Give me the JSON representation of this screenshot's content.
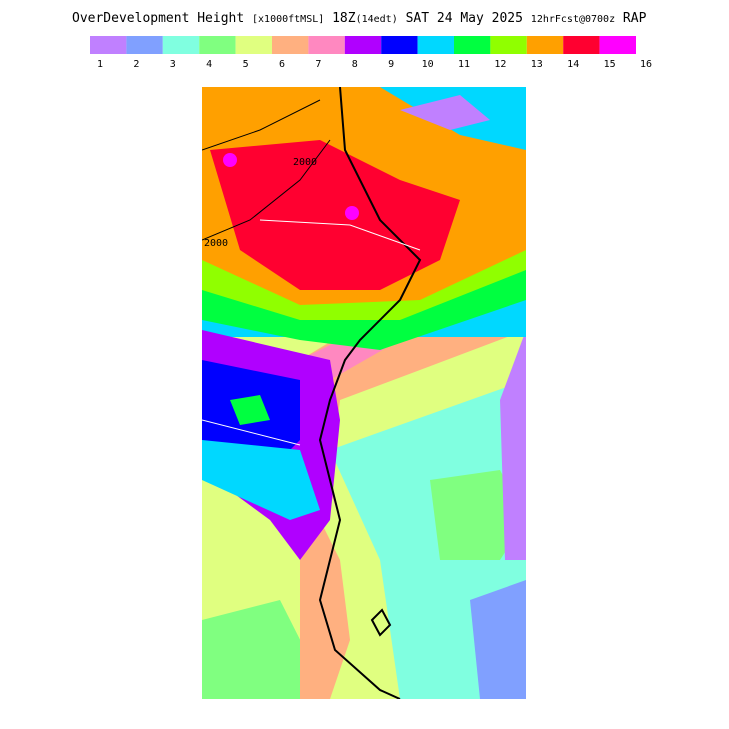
{
  "title_parts": [
    "OverDevelopment Height",
    "[x1000ftMSL]",
    "18Z",
    "(14edt)",
    "SAT 24 May 2025",
    "12hrFcst@0700z",
    "RAP"
  ],
  "legend": {
    "colors": [
      "#c080ff",
      "#80a0ff",
      "#80ffe0",
      "#80ff80",
      "#e0ff80",
      "#ffb080",
      "#ff88c0",
      "#b000ff",
      "#0000ff",
      "#00d8ff",
      "#00ff40",
      "#90ff00",
      "#ffa000",
      "#ff0030",
      "#ff00ff"
    ],
    "labels": [
      1,
      2,
      3,
      4,
      5,
      6,
      7,
      8,
      9,
      10,
      11,
      12,
      13,
      14,
      15,
      16
    ]
  },
  "contour_labels": [
    "2000",
    "2000"
  ]
}
